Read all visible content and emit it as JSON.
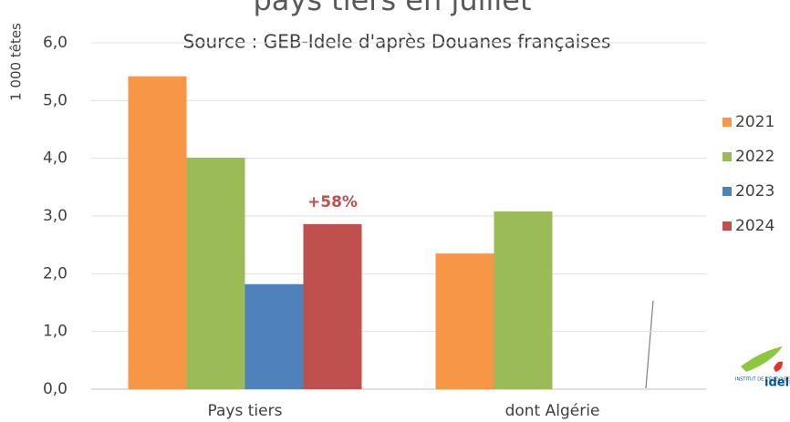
{
  "chart_data": {
    "type": "bar",
    "title": "pays tiers en juillet",
    "subtitle": "Source : GEB-Idele d'après Douanes françaises",
    "y_label": "1 000 têtes",
    "categories": [
      "Pays tiers",
      "dont Algérie"
    ],
    "series": [
      {
        "name": "2021",
        "color": "#f79646",
        "values": [
          5.42,
          2.35
        ]
      },
      {
        "name": "2022",
        "color": "#9bbb59",
        "values": [
          4.01,
          3.08
        ]
      },
      {
        "name": "2023",
        "color": "#4f81bd",
        "values": [
          1.82,
          null
        ]
      },
      {
        "name": "2024",
        "color": "#c0504d",
        "values": [
          2.86,
          null
        ]
      }
    ],
    "annotation": "+58%",
    "ylim": [
      0,
      6
    ],
    "yticks": [
      {
        "value": 0,
        "label": "0,0"
      },
      {
        "value": 1,
        "label": "1,0"
      },
      {
        "value": 2,
        "label": "2,0"
      },
      {
        "value": 3,
        "label": "3,0"
      },
      {
        "value": 4,
        "label": "4,0"
      },
      {
        "value": 5,
        "label": "5,0"
      },
      {
        "value": 6,
        "label": "6,0"
      }
    ],
    "grid": true,
    "legend": "right",
    "logo": {
      "top": "INSTITUT DE L'ÉLEVAGE",
      "name": "idele"
    }
  }
}
